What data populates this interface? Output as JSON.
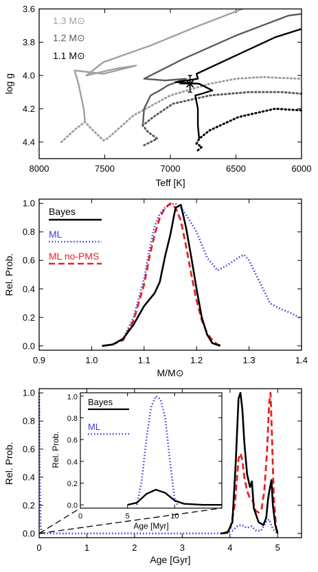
{
  "chart_data": [
    {
      "type": "line",
      "panel": "hr-diagram",
      "title": "",
      "xlabel": "Teff [K]",
      "ylabel": "log g",
      "xlim": [
        8000,
        6000
      ],
      "ylim": [
        4.5,
        3.6
      ],
      "x_ticks": [
        "8000",
        "7500",
        "7000",
        "6500",
        "6000"
      ],
      "y_ticks": [
        "3.6",
        "3.8",
        "4.0",
        "4.2",
        "4.4"
      ],
      "legend_position": "top-left",
      "series": [
        {
          "name": "1.3 M⊙",
          "color": "#a0a0a0",
          "pms": [
            [
              7830,
              4.4
            ],
            [
              7720,
              4.32
            ],
            [
              7650,
              4.28
            ],
            [
              7590,
              4.33
            ],
            [
              7510,
              4.39
            ],
            [
              7480,
              4.38
            ],
            [
              7280,
              4.24
            ],
            [
              7000,
              4.12
            ],
            [
              6700,
              4.05
            ],
            [
              6500,
              4.02
            ],
            [
              6300,
              4.01
            ],
            [
              6000,
              4.02
            ]
          ],
          "track": [
            [
              7650,
              4.28
            ],
            [
              7660,
              4.2
            ],
            [
              7700,
              4.05
            ],
            [
              7730,
              3.97
            ],
            [
              7510,
              3.99
            ],
            [
              7260,
              3.94
            ],
            [
              7420,
              3.96
            ],
            [
              7640,
              4.0
            ],
            [
              7510,
              3.92
            ],
            [
              7150,
              3.82
            ],
            [
              6780,
              3.7
            ],
            [
              6450,
              3.6
            ]
          ]
        },
        {
          "name": "1.2 M⊙",
          "color": "#5a5a5a",
          "pms": [
            [
              7200,
              4.42
            ],
            [
              7100,
              4.38
            ],
            [
              7170,
              4.34
            ],
            [
              7210,
              4.3
            ],
            [
              7130,
              4.25
            ],
            [
              6980,
              4.17
            ],
            [
              6700,
              4.12
            ],
            [
              6400,
              4.1
            ],
            [
              6150,
              4.1
            ],
            [
              6000,
              4.11
            ]
          ],
          "track": [
            [
              7210,
              4.3
            ],
            [
              7200,
              4.2
            ],
            [
              7150,
              4.12
            ],
            [
              7080,
              4.09
            ],
            [
              7020,
              4.06
            ],
            [
              6920,
              4.03
            ],
            [
              6880,
              4.02
            ],
            [
              7040,
              4.03
            ],
            [
              7200,
              4.02
            ],
            [
              6900,
              3.9
            ],
            [
              6500,
              3.76
            ],
            [
              6100,
              3.64
            ],
            [
              6000,
              3.63
            ]
          ]
        },
        {
          "name": "1.1 M⊙",
          "color": "#000000",
          "pms": [
            [
              6790,
              4.45
            ],
            [
              6760,
              4.43
            ],
            [
              6800,
              4.41
            ],
            [
              6780,
              4.38
            ],
            [
              6700,
              4.33
            ],
            [
              6480,
              4.25
            ],
            [
              6200,
              4.2
            ],
            [
              6000,
              4.21
            ]
          ],
          "track": [
            [
              6780,
              4.38
            ],
            [
              6790,
              4.3
            ],
            [
              6790,
              4.2
            ],
            [
              6810,
              4.12
            ],
            [
              6760,
              4.11
            ],
            [
              6680,
              4.09
            ],
            [
              6780,
              4.05
            ],
            [
              6960,
              4.04
            ],
            [
              6790,
              4.02
            ],
            [
              6800,
              3.99
            ],
            [
              6500,
              3.88
            ],
            [
              6200,
              3.77
            ],
            [
              6000,
              3.72
            ]
          ]
        }
      ],
      "observation": {
        "teff": 6850,
        "logg": 4.05,
        "teff_err": 80,
        "logg_err": 0.05
      }
    },
    {
      "type": "line",
      "panel": "mass-pdf",
      "title": "",
      "xlabel": "M/M⊙",
      "ylabel": "Rel. Prob.",
      "xlim": [
        0.9,
        1.4
      ],
      "ylim": [
        0,
        1.0
      ],
      "x_ticks": [
        "0.9",
        "1.0",
        "1.1",
        "1.2",
        "1.3",
        "1.4"
      ],
      "y_ticks": [
        "0.0",
        "0.2",
        "0.4",
        "0.6",
        "0.8",
        "1.0"
      ],
      "legend_position": "top-left",
      "series": [
        {
          "name": "Bayes",
          "color": "#000000",
          "style": "solid",
          "points": [
            [
              1.02,
              0
            ],
            [
              1.04,
              0.01
            ],
            [
              1.06,
              0.05
            ],
            [
              1.08,
              0.15
            ],
            [
              1.1,
              0.28
            ],
            [
              1.12,
              0.37
            ],
            [
              1.13,
              0.45
            ],
            [
              1.14,
              0.63
            ],
            [
              1.15,
              0.78
            ],
            [
              1.16,
              0.97
            ],
            [
              1.17,
              0.99
            ],
            [
              1.18,
              0.83
            ],
            [
              1.19,
              0.62
            ],
            [
              1.2,
              0.4
            ],
            [
              1.21,
              0.2
            ],
            [
              1.22,
              0.08
            ],
            [
              1.23,
              0.02
            ],
            [
              1.245,
              0
            ]
          ]
        },
        {
          "name": "ML",
          "color": "#3a3adf",
          "style": "dotted",
          "points": [
            [
              1.02,
              0
            ],
            [
              1.04,
              0.01
            ],
            [
              1.06,
              0.05
            ],
            [
              1.08,
              0.2
            ],
            [
              1.1,
              0.47
            ],
            [
              1.11,
              0.67
            ],
            [
              1.12,
              0.84
            ],
            [
              1.13,
              0.93
            ],
            [
              1.14,
              0.97
            ],
            [
              1.15,
              0.99
            ],
            [
              1.16,
              1.0
            ],
            [
              1.17,
              0.97
            ],
            [
              1.18,
              0.92
            ],
            [
              1.2,
              0.8
            ],
            [
              1.22,
              0.62
            ],
            [
              1.24,
              0.53
            ],
            [
              1.26,
              0.57
            ],
            [
              1.28,
              0.62
            ],
            [
              1.29,
              0.64
            ],
            [
              1.3,
              0.6
            ],
            [
              1.32,
              0.45
            ],
            [
              1.34,
              0.3
            ],
            [
              1.36,
              0.26
            ],
            [
              1.38,
              0.23
            ],
            [
              1.4,
              0.19
            ]
          ]
        },
        {
          "name": "ML no-PMS",
          "color": "#e8211e",
          "style": "dashed",
          "points": [
            [
              1.02,
              0
            ],
            [
              1.04,
              0.01
            ],
            [
              1.06,
              0.04
            ],
            [
              1.08,
              0.18
            ],
            [
              1.1,
              0.43
            ],
            [
              1.11,
              0.62
            ],
            [
              1.12,
              0.78
            ],
            [
              1.13,
              0.9
            ],
            [
              1.14,
              0.97
            ],
            [
              1.15,
              1.0
            ],
            [
              1.16,
              0.97
            ],
            [
              1.17,
              0.88
            ],
            [
              1.18,
              0.7
            ],
            [
              1.19,
              0.5
            ],
            [
              1.2,
              0.32
            ],
            [
              1.21,
              0.18
            ],
            [
              1.22,
              0.09
            ],
            [
              1.23,
              0.04
            ],
            [
              1.24,
              0.01
            ],
            [
              1.25,
              0
            ]
          ]
        }
      ]
    },
    {
      "type": "line",
      "panel": "age-pdf",
      "title": "",
      "xlabel": "Age [Gyr]",
      "ylabel": "Rel. Prob.",
      "xlim": [
        0,
        5.5
      ],
      "ylim": [
        0,
        1.0
      ],
      "x_ticks": [
        "0",
        "1",
        "2",
        "3",
        "4",
        "5"
      ],
      "y_ticks": [
        "0.0",
        "0.2",
        "0.4",
        "0.6",
        "0.8",
        "1.0"
      ],
      "series": [
        {
          "name": "Bayes",
          "color": "#000000",
          "style": "solid",
          "points": [
            [
              3.8,
              0
            ],
            [
              3.95,
              0.005
            ],
            [
              4.05,
              0.08
            ],
            [
              4.12,
              0.5
            ],
            [
              4.18,
              0.96
            ],
            [
              4.22,
              1.0
            ],
            [
              4.26,
              0.88
            ],
            [
              4.3,
              0.65
            ],
            [
              4.36,
              0.42
            ],
            [
              4.42,
              0.33
            ],
            [
              4.46,
              0.37
            ],
            [
              4.5,
              0.18
            ],
            [
              4.55,
              0.13
            ],
            [
              4.6,
              0.08
            ],
            [
              4.65,
              0.07
            ],
            [
              4.7,
              0.06
            ],
            [
              4.76,
              0.11
            ],
            [
              4.8,
              0.25
            ],
            [
              4.84,
              0.33
            ],
            [
              4.87,
              0.38
            ],
            [
              4.9,
              0.2
            ],
            [
              4.95,
              0.06
            ],
            [
              5.0,
              0
            ]
          ]
        },
        {
          "name": "ML",
          "color": "#3a3adf",
          "style": "dotted",
          "points": [
            [
              0.0,
              1.0
            ],
            [
              0.01,
              0.5
            ],
            [
              0.03,
              0.05
            ],
            [
              0.05,
              0.01
            ],
            [
              0.1,
              0
            ],
            [
              3.9,
              0
            ],
            [
              4.05,
              0.02
            ],
            [
              4.15,
              0.05
            ],
            [
              4.25,
              0.06
            ],
            [
              4.35,
              0.04
            ],
            [
              4.45,
              0.05
            ],
            [
              4.55,
              0.02
            ],
            [
              4.65,
              0.02
            ],
            [
              4.75,
              0.08
            ],
            [
              4.82,
              0.1
            ],
            [
              4.9,
              0.03
            ],
            [
              5.0,
              0
            ]
          ]
        },
        {
          "name": "ML no-PMS",
          "color": "#e8211e",
          "style": "dashed",
          "points": [
            [
              3.85,
              0
            ],
            [
              4.0,
              0.02
            ],
            [
              4.1,
              0.2
            ],
            [
              4.18,
              0.53
            ],
            [
              4.22,
              0.57
            ],
            [
              4.26,
              0.52
            ],
            [
              4.3,
              0.4
            ],
            [
              4.36,
              0.3
            ],
            [
              4.42,
              0.25
            ],
            [
              4.48,
              0.23
            ],
            [
              4.54,
              0.16
            ],
            [
              4.6,
              0.15
            ],
            [
              4.66,
              0.17
            ],
            [
              4.72,
              0.3
            ],
            [
              4.78,
              0.6
            ],
            [
              4.82,
              0.92
            ],
            [
              4.85,
              1.0
            ],
            [
              4.88,
              0.7
            ],
            [
              4.92,
              0.25
            ],
            [
              4.97,
              0.03
            ],
            [
              5.02,
              0
            ]
          ]
        }
      ],
      "inset": {
        "xlabel": "Age [Myr]",
        "ylabel": "Rel. Prob.",
        "xlim": [
          0,
          15
        ],
        "ylim": [
          0,
          1.0
        ],
        "x_ticks": [
          "0",
          "5",
          "10"
        ],
        "y_ticks": [
          "0.0",
          "0.2",
          "0.4",
          "0.6",
          "0.8",
          "1.0"
        ],
        "legend_position": "top-left",
        "series": [
          {
            "name": "Bayes",
            "color": "#000000",
            "style": "solid",
            "points": [
              [
                5,
                0
              ],
              [
                6,
                0.02
              ],
              [
                7,
                0.1
              ],
              [
                8,
                0.14
              ],
              [
                9,
                0.11
              ],
              [
                10,
                0.04
              ],
              [
                11,
                0.01
              ],
              [
                13,
                0
              ],
              [
                15,
                0
              ]
            ]
          },
          {
            "name": "ML",
            "color": "#3a3adf",
            "style": "dotted",
            "points": [
              [
                6,
                0
              ],
              [
                6.5,
                0.22
              ],
              [
                7,
                0.6
              ],
              [
                7.5,
                0.9
              ],
              [
                8,
                1.0
              ],
              [
                8.5,
                0.97
              ],
              [
                9,
                0.8
              ],
              [
                9.5,
                0.4
              ],
              [
                10,
                0.05
              ],
              [
                10.3,
                0
              ]
            ]
          }
        ]
      }
    }
  ]
}
